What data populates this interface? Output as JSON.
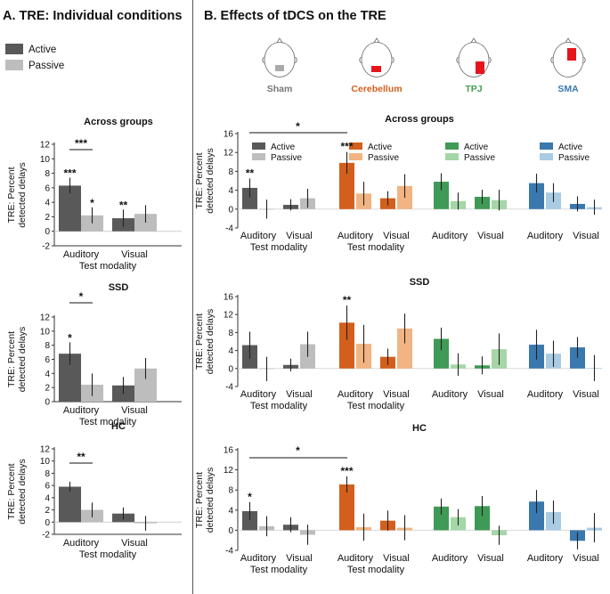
{
  "panel_a_title": "A. TRE: Individual conditions",
  "panel_b_title": "B. Effects of tDCS on the TRE",
  "legend": {
    "active": "Active",
    "passive": "Passive"
  },
  "y_label": "TRE: Percent detected delays",
  "x_axis_title": "Test modality",
  "categories": [
    "Auditory",
    "Visual"
  ],
  "heads": [
    {
      "label": "Sham",
      "color": "#777777"
    },
    {
      "label": "Cerebellum",
      "color": "#d35f1d"
    },
    {
      "label": "TPJ",
      "color": "#3fa055"
    },
    {
      "label": "SMA",
      "color": "#3a78ae"
    }
  ],
  "colors": {
    "Sham": [
      "#595959",
      "#bdbdbd"
    ],
    "Cerebellum": [
      "#d35f1d",
      "#f1b482"
    ],
    "TPJ": [
      "#3f9a56",
      "#a5d6a7"
    ],
    "SMA": [
      "#3a78ae",
      "#a9cbe3"
    ],
    "head_marker_sham": "#aaaaaa",
    "head_marker_red": "#e8141c"
  },
  "chart_data": [
    {
      "type": "bar",
      "panel": "A",
      "title": "Across groups",
      "ylim": [
        -2,
        12
      ],
      "yticks": [
        -2,
        0,
        2,
        4,
        6,
        8,
        10,
        12
      ],
      "categories": [
        "Auditory",
        "Visual"
      ],
      "series": [
        {
          "name": "Active",
          "values": [
            6.3,
            1.8
          ],
          "errors": [
            1.1,
            1.2
          ]
        },
        {
          "name": "Passive",
          "values": [
            2.2,
            2.4
          ],
          "errors": [
            1.1,
            1.2
          ]
        }
      ],
      "annotations": [
        {
          "text": "***",
          "at": "Auditory Active"
        },
        {
          "text": "*",
          "at": "Auditory Passive"
        },
        {
          "text": "**",
          "at": "Visual Active"
        },
        {
          "text": "***",
          "at": "Auditory Active vs Passive"
        }
      ]
    },
    {
      "type": "bar",
      "panel": "A",
      "title": "SSD",
      "ylim": [
        0,
        12
      ],
      "yticks": [
        0,
        2,
        4,
        6,
        8,
        10,
        12
      ],
      "categories": [
        "Auditory",
        "Visual"
      ],
      "series": [
        {
          "name": "Active",
          "values": [
            6.8,
            2.3
          ],
          "errors": [
            1.6,
            1.2
          ]
        },
        {
          "name": "Passive",
          "values": [
            2.4,
            4.7
          ],
          "errors": [
            1.6,
            1.5
          ]
        }
      ],
      "annotations": [
        {
          "text": "*",
          "at": "Auditory Active"
        },
        {
          "text": "*",
          "at": "Auditory Active vs Passive"
        }
      ]
    },
    {
      "type": "bar",
      "panel": "A",
      "title": "HC",
      "ylim": [
        -2,
        12
      ],
      "yticks": [
        -2,
        0,
        2,
        4,
        6,
        8,
        10,
        12
      ],
      "categories": [
        "Auditory",
        "Visual"
      ],
      "series": [
        {
          "name": "Active",
          "values": [
            5.8,
            1.4
          ],
          "errors": [
            0.8,
            1.0
          ]
        },
        {
          "name": "Passive",
          "values": [
            2.0,
            -0.2
          ],
          "errors": [
            1.2,
            1.2
          ]
        }
      ],
      "annotations": [
        {
          "text": "**",
          "at": "Auditory Active vs Passive"
        }
      ]
    },
    {
      "type": "bar",
      "panel": "B",
      "title": "Across groups",
      "ylim": [
        -4,
        16
      ],
      "yticks": [
        -4,
        0,
        4,
        8,
        12,
        16
      ],
      "categories": [
        "Auditory",
        "Visual"
      ],
      "groups": [
        {
          "name": "Sham",
          "active": [
            4.5,
            0.9
          ],
          "active_err": [
            2.0,
            1.2
          ],
          "passive": [
            0.0,
            2.3
          ],
          "passive_err": [
            2.0,
            2.0
          ]
        },
        {
          "name": "Cerebellum",
          "active": [
            9.8,
            2.3
          ],
          "active_err": [
            2.3,
            1.5
          ],
          "passive": [
            3.3,
            4.9
          ],
          "passive_err": [
            2.5,
            2.5
          ]
        },
        {
          "name": "TPJ",
          "active": [
            5.8,
            2.6
          ],
          "active_err": [
            1.8,
            1.5
          ],
          "passive": [
            1.7,
            1.9
          ],
          "passive_err": [
            1.8,
            2.2
          ]
        },
        {
          "name": "SMA",
          "active": [
            5.5,
            1.1
          ],
          "active_err": [
            2.0,
            1.6
          ],
          "passive": [
            3.5,
            0.4
          ],
          "passive_err": [
            2.0,
            1.6
          ]
        }
      ],
      "legends": [
        "Sham",
        "Cerebellum",
        "TPJ",
        "SMA"
      ],
      "annotations": [
        {
          "text": "**",
          "at": "Sham Auditory Active"
        },
        {
          "text": "***",
          "at": "Cerebellum Auditory Active"
        },
        {
          "text": "*",
          "at": "Sham vs Cerebellum Auditory Active"
        }
      ]
    },
    {
      "type": "bar",
      "panel": "B",
      "title": "SSD",
      "ylim": [
        -4,
        16
      ],
      "yticks": [
        -4,
        0,
        4,
        8,
        12,
        16
      ],
      "categories": [
        "Auditory",
        "Visual"
      ],
      "groups": [
        {
          "name": "Sham",
          "active": [
            5.2,
            0.8
          ],
          "active_err": [
            3.0,
            1.4
          ],
          "passive": [
            -0.1,
            5.4
          ],
          "passive_err": [
            2.7,
            2.8
          ]
        },
        {
          "name": "Cerebellum",
          "active": [
            10.2,
            2.6
          ],
          "active_err": [
            3.8,
            1.8
          ],
          "passive": [
            5.5,
            8.9
          ],
          "passive_err": [
            4.2,
            3.3
          ]
        },
        {
          "name": "TPJ",
          "active": [
            6.6,
            0.7
          ],
          "active_err": [
            2.5,
            2.0
          ],
          "passive": [
            0.9,
            4.3
          ],
          "passive_err": [
            2.5,
            3.5
          ]
        },
        {
          "name": "SMA",
          "active": [
            5.3,
            4.7
          ],
          "active_err": [
            3.3,
            2.3
          ],
          "passive": [
            3.3,
            0.1
          ],
          "passive_err": [
            2.9,
            2.9
          ]
        }
      ],
      "annotations": [
        {
          "text": "**",
          "at": "Cerebellum Auditory Active"
        }
      ]
    },
    {
      "type": "bar",
      "panel": "B",
      "title": "HC",
      "ylim": [
        -4,
        16
      ],
      "yticks": [
        -4,
        0,
        4,
        8,
        12,
        16
      ],
      "categories": [
        "Auditory",
        "Visual"
      ],
      "groups": [
        {
          "name": "Sham",
          "active": [
            3.8,
            1.1
          ],
          "active_err": [
            1.8,
            1.5
          ],
          "passive": [
            0.8,
            -0.9
          ],
          "passive_err": [
            2.0,
            2.0
          ]
        },
        {
          "name": "Cerebellum",
          "active": [
            9.1,
            1.9
          ],
          "active_err": [
            1.6,
            2.0
          ],
          "passive": [
            0.6,
            0.5
          ],
          "passive_err": [
            2.7,
            2.5
          ]
        },
        {
          "name": "TPJ",
          "active": [
            4.7,
            4.8
          ],
          "active_err": [
            1.6,
            2.0
          ],
          "passive": [
            2.6,
            -1.0
          ],
          "passive_err": [
            1.6,
            1.9
          ]
        },
        {
          "name": "SMA",
          "active": [
            5.7,
            -2.1
          ],
          "active_err": [
            2.3,
            1.7
          ],
          "passive": [
            3.6,
            0.5
          ],
          "passive_err": [
            2.3,
            2.9
          ]
        }
      ],
      "annotations": [
        {
          "text": "*",
          "at": "Sham Auditory Active"
        },
        {
          "text": "***",
          "at": "Cerebellum Auditory Active"
        },
        {
          "text": "*",
          "at": "Sham vs Cerebellum Auditory Active"
        }
      ]
    }
  ]
}
